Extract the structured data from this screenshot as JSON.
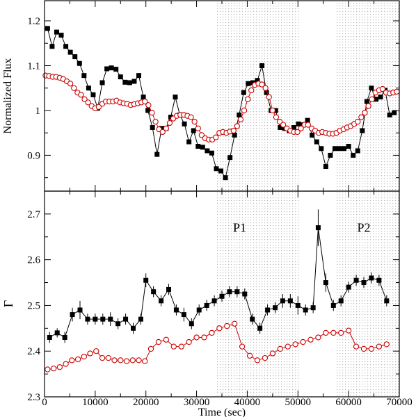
{
  "figure": {
    "xlabel": "Time (sec)",
    "xlim": [
      0,
      70000
    ],
    "xticks": [
      0,
      10000,
      20000,
      30000,
      40000,
      50000,
      60000,
      70000
    ],
    "xtick_labels": [
      "0",
      "10000",
      "20000",
      "30000",
      "40000",
      "50000",
      "60000",
      "70000"
    ],
    "shaded_intervals": [
      [
        34000,
        50500
      ],
      [
        57500,
        70000
      ]
    ],
    "shade_pattern": "dotted",
    "colors": {
      "black_series": "#000000",
      "red_series": "#cc0000",
      "shade": "#b8b8b8"
    }
  },
  "chart_data": [
    {
      "type": "line",
      "panel": "top",
      "title": "",
      "xlabel": "",
      "ylabel": "Normalized Flux",
      "ylim": [
        0.82,
        1.245
      ],
      "yticks": [
        0.9,
        1.0,
        1.1,
        1.2
      ],
      "ytick_labels": [
        "0.9",
        "1",
        "1.1",
        "1.2"
      ],
      "grid": false,
      "series": [
        {
          "marker": "filled-square",
          "color": "#000000",
          "x": [
            600,
            1500,
            2400,
            3300,
            4200,
            5100,
            6000,
            6900,
            7800,
            8700,
            9600,
            10500,
            11400,
            12300,
            13200,
            14100,
            15000,
            15900,
            16800,
            17700,
            18600,
            19500,
            20400,
            21300,
            22200,
            23100,
            24000,
            24900,
            25800,
            26700,
            27600,
            28500,
            29400,
            30300,
            31200,
            32100,
            33000,
            33900,
            34800,
            35700,
            36600,
            37500,
            38400,
            39300,
            40200,
            41100,
            42000,
            42900,
            43800,
            44700,
            45600,
            46500,
            47400,
            48300,
            49200,
            50100,
            51000,
            51900,
            52800,
            53700,
            54600,
            55500,
            56400,
            57300,
            58200,
            59100,
            60000,
            60900,
            61800,
            62700,
            63600,
            64500,
            65400,
            66300,
            67200,
            68100,
            69000
          ],
          "y": [
            1.183,
            1.143,
            1.175,
            1.168,
            1.143,
            1.13,
            1.12,
            1.105,
            1.078,
            1.05,
            1.035,
            1.005,
            1.062,
            1.093,
            1.095,
            1.092,
            1.075,
            1.063,
            1.062,
            1.065,
            1.078,
            1.03,
            1.0,
            0.962,
            0.902,
            0.96,
            0.96,
            0.985,
            1.03,
            0.99,
            0.97,
            0.93,
            0.955,
            0.92,
            0.918,
            0.91,
            0.905,
            0.87,
            0.865,
            0.85,
            0.895,
            0.945,
            0.99,
            1.04,
            1.06,
            1.062,
            1.067,
            1.1,
            1.04,
            1.0,
            1.0,
            0.962,
            0.96,
            0.955,
            0.962,
            0.97,
            0.968,
            0.978,
            0.945,
            0.93,
            0.915,
            0.875,
            0.9,
            0.915,
            0.915,
            0.915,
            0.92,
            0.9,
            0.91,
            0.955,
            1.02,
            1.05,
            1.025,
            1.03,
            1.045,
            0.99,
            0.995
          ]
        },
        {
          "marker": "open-circle",
          "color": "#cc0000",
          "x": [
            200,
            900,
            1600,
            2300,
            3000,
            3700,
            4400,
            5100,
            5800,
            6500,
            7200,
            7900,
            8600,
            9300,
            10000,
            10700,
            11400,
            12100,
            12800,
            13500,
            14200,
            14900,
            15600,
            16300,
            17000,
            17700,
            18400,
            19100,
            19800,
            20500,
            21200,
            21900,
            22600,
            23300,
            24000,
            24700,
            25400,
            26100,
            26800,
            27500,
            28200,
            28900,
            29600,
            30300,
            31000,
            31700,
            32400,
            33100,
            33800,
            34500,
            35200,
            35900,
            36600,
            37300,
            38000,
            38700,
            39400,
            40100,
            40800,
            41500,
            42200,
            42900,
            43600,
            44300,
            45000,
            45700,
            46400,
            47100,
            47800,
            48500,
            49200,
            49900,
            50600,
            51300,
            52000,
            52700,
            53400,
            54100,
            54800,
            55500,
            56200,
            56900,
            57600,
            58300,
            59000,
            59700,
            60400,
            61100,
            61800,
            62500,
            63200,
            63900,
            64600,
            65300,
            66000,
            66700,
            67400,
            68100,
            68800,
            69500
          ],
          "y": [
            1.078,
            1.077,
            1.075,
            1.075,
            1.073,
            1.07,
            1.065,
            1.06,
            1.05,
            1.04,
            1.035,
            1.025,
            1.018,
            1.01,
            1.005,
            1.008,
            1.015,
            1.02,
            1.02,
            1.02,
            1.022,
            1.018,
            1.016,
            1.015,
            1.012,
            1.014,
            1.016,
            1.018,
            1.02,
            1.012,
            0.995,
            0.975,
            0.958,
            0.952,
            0.96,
            0.972,
            0.982,
            0.988,
            0.99,
            0.99,
            0.988,
            0.985,
            0.975,
            0.96,
            0.945,
            0.938,
            0.935,
            0.935,
            0.94,
            0.95,
            0.952,
            0.95,
            0.953,
            0.955,
            0.965,
            0.98,
            1.0,
            1.025,
            1.045,
            1.057,
            1.06,
            1.058,
            1.05,
            1.03,
            1.0,
            0.985,
            0.975,
            0.968,
            0.96,
            0.955,
            0.952,
            0.952,
            0.96,
            0.968,
            0.968,
            0.96,
            0.955,
            0.95,
            0.952,
            0.95,
            0.948,
            0.948,
            0.95,
            0.955,
            0.958,
            0.962,
            0.965,
            0.97,
            0.975,
            0.985,
            0.995,
            1.01,
            1.025,
            1.04,
            1.045,
            1.048,
            1.04,
            1.038,
            1.04,
            1.042
          ]
        }
      ]
    },
    {
      "type": "line",
      "panel": "bottom",
      "title": "",
      "xlabel": "Time (sec)",
      "ylabel": "Γ",
      "ylim": [
        2.3,
        2.75
      ],
      "yticks": [
        2.3,
        2.4,
        2.5,
        2.6,
        2.7
      ],
      "ytick_labels": [
        "2.3",
        "2.4",
        "2.5",
        "2.6",
        "2.7"
      ],
      "grid": false,
      "annotations": [
        {
          "text": "P1",
          "x": 38500,
          "y": 2.67
        },
        {
          "text": "P2",
          "x": 63000,
          "y": 2.67
        }
      ],
      "series": [
        {
          "marker": "filled-square",
          "color": "#000000",
          "error_bars": true,
          "x": [
            1000,
            2500,
            4000,
            5500,
            7000,
            8500,
            10000,
            11500,
            13000,
            14500,
            16000,
            17500,
            19000,
            20000,
            21500,
            23000,
            24500,
            26000,
            27500,
            29000,
            30500,
            32000,
            33500,
            35000,
            36500,
            38000,
            39500,
            41000,
            42500,
            44000,
            45500,
            47000,
            48500,
            50000,
            51500,
            53000,
            54000,
            55500,
            57000,
            58500,
            60000,
            61500,
            63000,
            64500,
            66000,
            67500
          ],
          "y": [
            2.43,
            2.44,
            2.43,
            2.48,
            2.49,
            2.47,
            2.47,
            2.47,
            2.47,
            2.46,
            2.47,
            2.45,
            2.47,
            2.555,
            2.53,
            2.51,
            2.535,
            2.49,
            2.48,
            2.46,
            2.49,
            2.5,
            2.51,
            2.52,
            2.53,
            2.53,
            2.525,
            2.47,
            2.45,
            2.49,
            2.495,
            2.51,
            2.51,
            2.5,
            2.49,
            2.495,
            2.67,
            2.55,
            2.5,
            2.51,
            2.54,
            2.555,
            2.55,
            2.56,
            2.555,
            2.51
          ],
          "y_err": [
            0.012,
            0.01,
            0.012,
            0.015,
            0.02,
            0.012,
            0.012,
            0.012,
            0.015,
            0.012,
            0.012,
            0.012,
            0.012,
            0.015,
            0.012,
            0.012,
            0.012,
            0.012,
            0.015,
            0.012,
            0.012,
            0.012,
            0.012,
            0.012,
            0.012,
            0.012,
            0.012,
            0.012,
            0.012,
            0.012,
            0.012,
            0.015,
            0.015,
            0.02,
            0.012,
            0.012,
            0.04,
            0.02,
            0.012,
            0.012,
            0.012,
            0.012,
            0.012,
            0.012,
            0.012,
            0.012
          ]
        },
        {
          "marker": "open-circle",
          "color": "#cc0000",
          "x": [
            600,
            1800,
            3000,
            4200,
            5400,
            6600,
            7800,
            9000,
            10200,
            11400,
            12600,
            13800,
            15000,
            16200,
            17400,
            18600,
            19800,
            21000,
            22500,
            24000,
            25500,
            27000,
            28500,
            30000,
            31500,
            33000,
            34500,
            36000,
            37500,
            39000,
            40500,
            42000,
            43500,
            45000,
            46500,
            48000,
            49500,
            51000,
            52500,
            54000,
            55500,
            57000,
            58500,
            60000,
            61500,
            63000,
            64500,
            66000,
            67500
          ],
          "y": [
            2.36,
            2.362,
            2.365,
            2.372,
            2.38,
            2.382,
            2.388,
            2.395,
            2.4,
            2.385,
            2.385,
            2.38,
            2.38,
            2.378,
            2.38,
            2.38,
            2.378,
            2.405,
            2.42,
            2.425,
            2.41,
            2.41,
            2.42,
            2.43,
            2.43,
            2.44,
            2.45,
            2.455,
            2.46,
            2.41,
            2.39,
            2.38,
            2.385,
            2.395,
            2.405,
            2.41,
            2.415,
            2.42,
            2.425,
            2.43,
            2.44,
            2.44,
            2.44,
            2.445,
            2.41,
            2.405,
            2.405,
            2.41,
            2.415
          ]
        }
      ]
    }
  ]
}
